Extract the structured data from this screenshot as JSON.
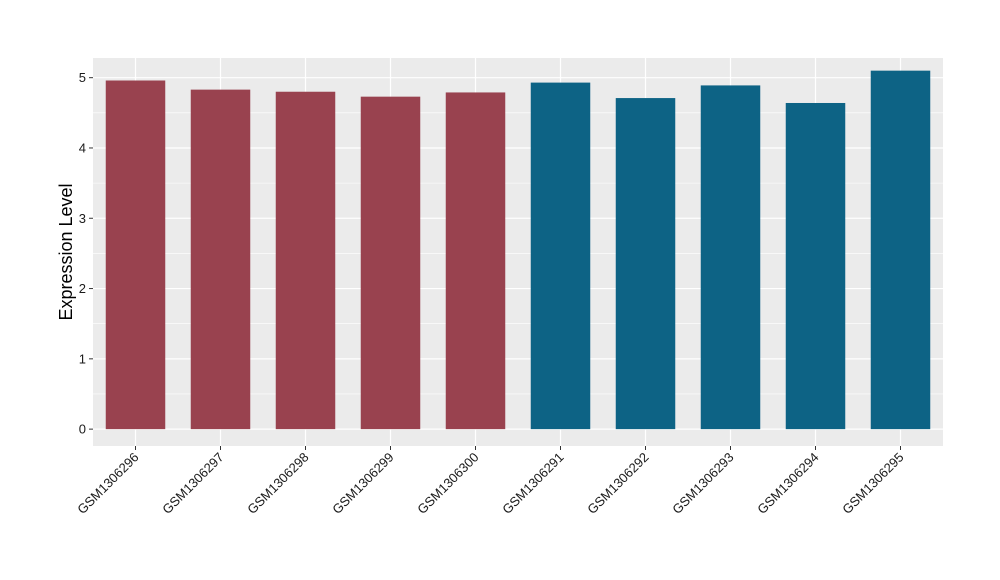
{
  "chart_data": {
    "type": "bar",
    "title": "",
    "xlabel": "",
    "ylabel": "Expression Level",
    "categories": [
      "GSM1306296",
      "GSM1306297",
      "GSM1306298",
      "GSM1306299",
      "GSM1306300",
      "GSM1306291",
      "GSM1306292",
      "GSM1306293",
      "GSM1306294",
      "GSM1306295"
    ],
    "values": [
      4.96,
      4.83,
      4.8,
      4.73,
      4.79,
      4.93,
      4.71,
      4.89,
      4.64,
      5.1
    ],
    "bar_colors": [
      "#99424f",
      "#99424f",
      "#99424f",
      "#99424f",
      "#99424f",
      "#0d6385",
      "#0d6385",
      "#0d6385",
      "#0d6385",
      "#0d6385"
    ],
    "ylim": [
      -0.24,
      5.28
    ],
    "yticks": [
      0,
      1,
      2,
      3,
      4,
      5
    ],
    "grid": true,
    "legend": "none",
    "panel_background": "#ebebeb",
    "grid_color": "#ffffff"
  }
}
